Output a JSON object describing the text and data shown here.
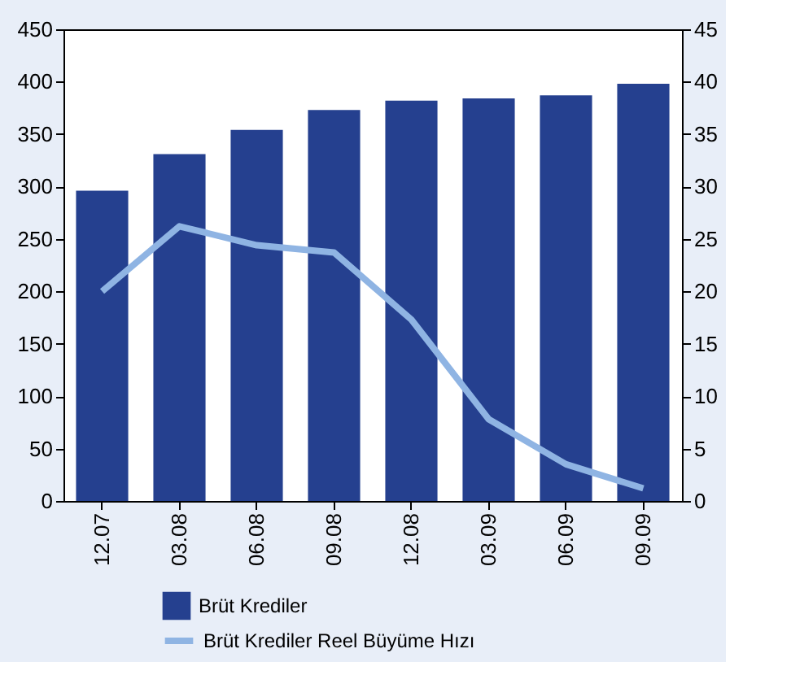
{
  "chart_data": {
    "type": "bar",
    "categories": [
      "12.07",
      "03.08",
      "06.08",
      "09.08",
      "12.08",
      "03.09",
      "06.09",
      "09.09"
    ],
    "series": [
      {
        "name": "Brüt Krediler",
        "color": "#25408f",
        "values": [
          296,
          331,
          354,
          373,
          382,
          384,
          387,
          398
        ]
      },
      {
        "name": "Brüt Krediler Reel Büyüme Hızı",
        "type": "line",
        "axis": "y2",
        "color": "#8fb4e3",
        "values": [
          20,
          26.2,
          24.4,
          23.7,
          17.3,
          7.8,
          3.5,
          1.2
        ]
      }
    ],
    "ylim": [
      0,
      450
    ],
    "yticks": [
      0,
      50,
      100,
      150,
      200,
      250,
      300,
      350,
      400,
      450
    ],
    "y2lim": [
      0,
      45
    ],
    "y2ticks": [
      0,
      5,
      10,
      15,
      20,
      25,
      30,
      35,
      40,
      45
    ],
    "grid": false,
    "legend": "bottom left"
  }
}
